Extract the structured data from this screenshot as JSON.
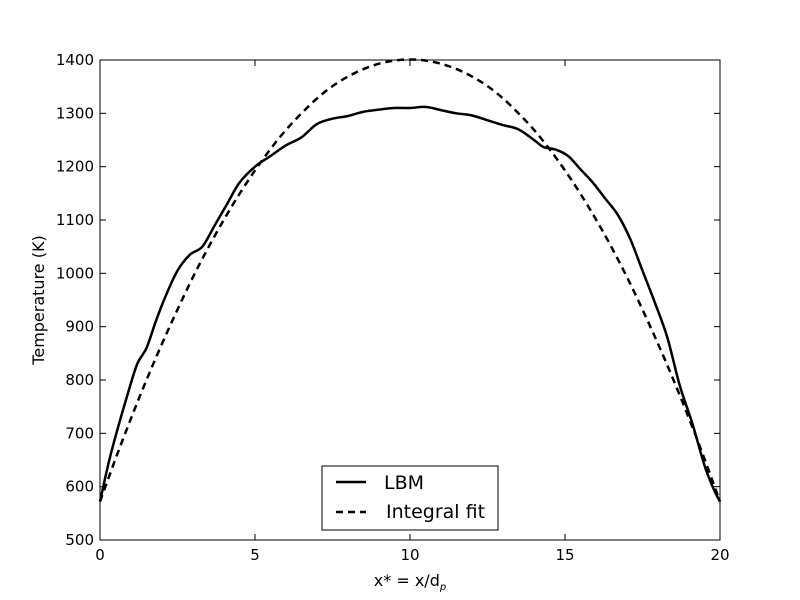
{
  "chart_data": {
    "type": "line",
    "title": "",
    "xlabel": "x* = x/d",
    "xlabel_subscript": "p",
    "ylabel": "Temperature (K)",
    "xlim": [
      0,
      20
    ],
    "ylim": [
      500,
      1400
    ],
    "xticks": [
      0,
      5,
      10,
      15,
      20
    ],
    "yticks": [
      500,
      600,
      700,
      800,
      900,
      1000,
      1100,
      1200,
      1300,
      1400
    ],
    "grid": false,
    "legend_position": "bottom-center",
    "series": [
      {
        "name": "LBM",
        "style": "solid",
        "color": "#000000",
        "x": [
          0,
          0.3,
          0.6,
          0.9,
          1.2,
          1.5,
          1.8,
          2.1,
          2.5,
          2.9,
          3.3,
          3.7,
          4.1,
          4.5,
          5.0,
          5.5,
          6.0,
          6.5,
          7.0,
          7.5,
          8.0,
          8.5,
          9.0,
          9.5,
          10.0,
          10.5,
          11.0,
          11.5,
          12.0,
          12.5,
          13.0,
          13.5,
          14.0,
          14.3,
          14.7,
          15.1,
          15.5,
          15.9,
          16.3,
          16.7,
          17.1,
          17.5,
          17.9,
          18.3,
          18.7,
          19.1,
          19.5,
          19.8,
          20.0
        ],
        "values": [
          572,
          650,
          715,
          775,
          830,
          860,
          910,
          955,
          1005,
          1035,
          1050,
          1090,
          1130,
          1170,
          1200,
          1220,
          1240,
          1255,
          1280,
          1290,
          1295,
          1303,
          1307,
          1310,
          1310,
          1312,
          1306,
          1300,
          1296,
          1287,
          1278,
          1270,
          1250,
          1237,
          1232,
          1220,
          1195,
          1170,
          1140,
          1110,
          1065,
          1005,
          945,
          880,
          790,
          720,
          640,
          595,
          572
        ]
      },
      {
        "name": "Integral fit",
        "style": "dashed",
        "color": "#000000",
        "x": [
          0,
          0.5,
          1.0,
          1.5,
          2.0,
          2.5,
          3.0,
          3.5,
          4.0,
          4.5,
          5.0,
          5.5,
          6.0,
          6.5,
          7.0,
          7.5,
          8.0,
          8.5,
          9.0,
          9.5,
          10.0,
          10.5,
          11.0,
          11.5,
          12.0,
          12.5,
          13.0,
          13.5,
          14.0,
          14.5,
          15.0,
          15.5,
          16.0,
          16.5,
          17.0,
          17.5,
          18.0,
          18.5,
          19.0,
          19.5,
          20.0
        ],
        "values": [
          572,
          652,
          728,
          800,
          868,
          932,
          993,
          1049,
          1101,
          1149,
          1193,
          1233,
          1269,
          1300,
          1328,
          1351,
          1369,
          1383,
          1393,
          1399,
          1401,
          1399,
          1393,
          1383,
          1369,
          1351,
          1328,
          1300,
          1269,
          1233,
          1193,
          1149,
          1101,
          1049,
          993,
          932,
          868,
          800,
          728,
          652,
          572
        ]
      }
    ]
  }
}
